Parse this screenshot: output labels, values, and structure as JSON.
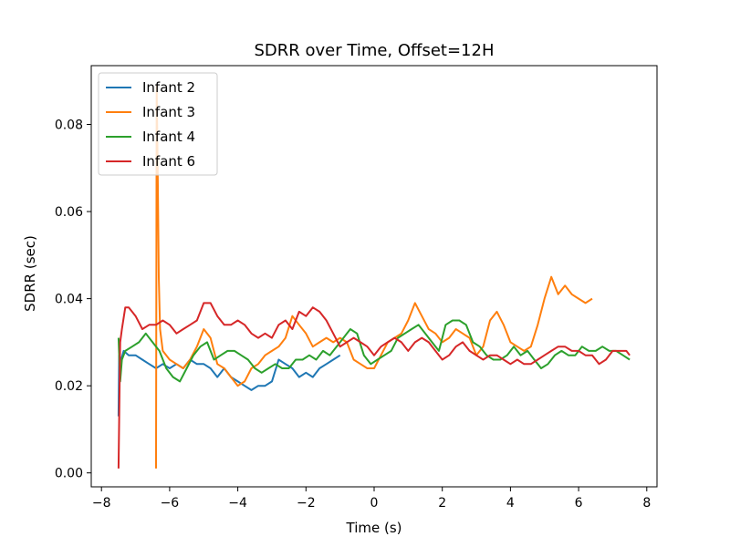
{
  "chart_data": {
    "type": "line",
    "title": "SDRR over Time, Offset=12H",
    "xlabel": "Time (s)",
    "ylabel": "SDRR (sec)",
    "xlim": [
      -8.3,
      8.3
    ],
    "ylim": [
      -0.0032,
      0.0935
    ],
    "xticks": [
      -8,
      -6,
      -4,
      -2,
      0,
      2,
      4,
      6,
      8
    ],
    "xtick_labels": [
      "−8",
      "−6",
      "−4",
      "−2",
      "0",
      "2",
      "4",
      "6",
      "8"
    ],
    "yticks": [
      0.0,
      0.02,
      0.04,
      0.06,
      0.08
    ],
    "ytick_labels": [
      "0.00",
      "0.02",
      "0.04",
      "0.06",
      "0.08"
    ],
    "legend_position": "upper-left",
    "series": [
      {
        "name": "Infant 2",
        "color": "#1f77b4",
        "x": [
          -7.5,
          -7.48,
          -7.42,
          -7.35,
          -7.2,
          -7.0,
          -6.8,
          -6.6,
          -6.4,
          -6.2,
          -6.0,
          -5.8,
          -5.6,
          -5.4,
          -5.2,
          -5.0,
          -4.8,
          -4.6,
          -4.4,
          -4.2,
          -4.0,
          -3.8,
          -3.6,
          -3.4,
          -3.2,
          -3.0,
          -2.8,
          -2.6,
          -2.4,
          -2.2,
          -2.0,
          -1.8,
          -1.6,
          -1.4,
          -1.2,
          -1.0
        ],
        "y": [
          0.013,
          0.027,
          0.026,
          0.028,
          0.027,
          0.027,
          0.026,
          0.025,
          0.024,
          0.025,
          0.024,
          0.025,
          0.024,
          0.026,
          0.025,
          0.025,
          0.024,
          0.022,
          0.024,
          0.022,
          0.021,
          0.02,
          0.019,
          0.02,
          0.02,
          0.021,
          0.026,
          0.025,
          0.024,
          0.022,
          0.023,
          0.022,
          0.024,
          0.025,
          0.026,
          0.027
        ]
      },
      {
        "name": "Infant 3",
        "color": "#ff7f0e",
        "x": [
          -6.4,
          -6.38,
          -6.35,
          -6.32,
          -6.28,
          -6.2,
          -6.0,
          -5.8,
          -5.6,
          -5.4,
          -5.2,
          -5.0,
          -4.8,
          -4.6,
          -4.4,
          -4.2,
          -4.0,
          -3.8,
          -3.6,
          -3.4,
          -3.2,
          -3.0,
          -2.8,
          -2.6,
          -2.4,
          -2.2,
          -2.0,
          -1.8,
          -1.6,
          -1.4,
          -1.2,
          -1.0,
          -0.8,
          -0.6,
          -0.4,
          -0.2,
          0.0,
          0.2,
          0.4,
          0.6,
          0.8,
          1.0,
          1.2,
          1.4,
          1.6,
          1.8,
          2.0,
          2.2,
          2.4,
          2.6,
          2.8,
          3.0,
          3.2,
          3.4,
          3.6,
          3.8,
          4.0,
          4.2,
          4.4,
          4.6,
          4.8,
          5.0,
          5.2,
          5.4,
          5.6,
          5.8,
          6.0,
          6.2,
          6.4
        ],
        "y": [
          0.001,
          0.089,
          0.07,
          0.045,
          0.033,
          0.028,
          0.026,
          0.025,
          0.024,
          0.026,
          0.029,
          0.033,
          0.031,
          0.025,
          0.024,
          0.022,
          0.02,
          0.021,
          0.024,
          0.025,
          0.027,
          0.028,
          0.029,
          0.031,
          0.036,
          0.034,
          0.032,
          0.029,
          0.03,
          0.031,
          0.03,
          0.031,
          0.03,
          0.026,
          0.025,
          0.024,
          0.024,
          0.027,
          0.03,
          0.031,
          0.032,
          0.035,
          0.039,
          0.036,
          0.033,
          0.032,
          0.03,
          0.031,
          0.033,
          0.032,
          0.031,
          0.027,
          0.029,
          0.035,
          0.037,
          0.034,
          0.03,
          0.029,
          0.028,
          0.029,
          0.034,
          0.04,
          0.045,
          0.041,
          0.043,
          0.041,
          0.04,
          0.039,
          0.04
        ]
      },
      {
        "name": "Infant 4",
        "color": "#2ca02c",
        "x": [
          -7.5,
          -7.45,
          -7.4,
          -7.3,
          -7.1,
          -6.9,
          -6.7,
          -6.5,
          -6.3,
          -6.1,
          -5.9,
          -5.7,
          -5.5,
          -5.3,
          -5.1,
          -4.9,
          -4.7,
          -4.5,
          -4.3,
          -4.1,
          -3.9,
          -3.7,
          -3.5,
          -3.3,
          -3.1,
          -2.9,
          -2.7,
          -2.5,
          -2.3,
          -2.1,
          -1.9,
          -1.7,
          -1.5,
          -1.3,
          -1.1,
          -0.9,
          -0.7,
          -0.5,
          -0.3,
          -0.1,
          0.1,
          0.3,
          0.5,
          0.7,
          0.9,
          1.1,
          1.3,
          1.5,
          1.7,
          1.9,
          2.1,
          2.3,
          2.5,
          2.7,
          2.9,
          3.1,
          3.3,
          3.5,
          3.7,
          3.9,
          4.1,
          4.3,
          4.5,
          4.7,
          4.9,
          5.1,
          5.3,
          5.5,
          5.7,
          5.9,
          6.1,
          6.3,
          6.5,
          6.7,
          6.9,
          7.1,
          7.3,
          7.5
        ],
        "y": [
          0.031,
          0.021,
          0.026,
          0.028,
          0.029,
          0.03,
          0.032,
          0.03,
          0.028,
          0.024,
          0.022,
          0.021,
          0.024,
          0.027,
          0.029,
          0.03,
          0.026,
          0.027,
          0.028,
          0.028,
          0.027,
          0.026,
          0.024,
          0.023,
          0.024,
          0.025,
          0.024,
          0.024,
          0.026,
          0.026,
          0.027,
          0.026,
          0.028,
          0.027,
          0.029,
          0.031,
          0.033,
          0.032,
          0.027,
          0.025,
          0.026,
          0.027,
          0.028,
          0.031,
          0.032,
          0.033,
          0.034,
          0.032,
          0.03,
          0.028,
          0.034,
          0.035,
          0.035,
          0.034,
          0.03,
          0.029,
          0.027,
          0.026,
          0.026,
          0.027,
          0.029,
          0.027,
          0.028,
          0.026,
          0.024,
          0.025,
          0.027,
          0.028,
          0.027,
          0.027,
          0.029,
          0.028,
          0.028,
          0.029,
          0.028,
          0.028,
          0.027,
          0.026
        ]
      },
      {
        "name": "Infant 6",
        "color": "#d62728",
        "x": [
          -7.5,
          -7.45,
          -7.4,
          -7.3,
          -7.2,
          -7.0,
          -6.8,
          -6.6,
          -6.4,
          -6.2,
          -6.0,
          -5.8,
          -5.6,
          -5.4,
          -5.2,
          -5.0,
          -4.8,
          -4.6,
          -4.4,
          -4.2,
          -4.0,
          -3.8,
          -3.6,
          -3.4,
          -3.2,
          -3.0,
          -2.8,
          -2.6,
          -2.4,
          -2.2,
          -2.0,
          -1.8,
          -1.6,
          -1.4,
          -1.2,
          -1.0,
          -0.8,
          -0.6,
          -0.4,
          -0.2,
          0.0,
          0.2,
          0.4,
          0.6,
          0.8,
          1.0,
          1.2,
          1.4,
          1.6,
          1.8,
          2.0,
          2.2,
          2.4,
          2.6,
          2.8,
          3.0,
          3.2,
          3.4,
          3.6,
          3.8,
          4.0,
          4.2,
          4.4,
          4.6,
          4.8,
          5.0,
          5.2,
          5.4,
          5.6,
          5.8,
          6.0,
          6.2,
          6.4,
          6.6,
          6.8,
          7.0,
          7.2,
          7.4,
          7.5
        ],
        "y": [
          0.001,
          0.03,
          0.033,
          0.038,
          0.038,
          0.036,
          0.033,
          0.034,
          0.034,
          0.035,
          0.034,
          0.032,
          0.033,
          0.034,
          0.035,
          0.039,
          0.039,
          0.036,
          0.034,
          0.034,
          0.035,
          0.034,
          0.032,
          0.031,
          0.032,
          0.031,
          0.034,
          0.035,
          0.033,
          0.037,
          0.036,
          0.038,
          0.037,
          0.035,
          0.032,
          0.029,
          0.03,
          0.031,
          0.03,
          0.029,
          0.027,
          0.029,
          0.03,
          0.031,
          0.03,
          0.028,
          0.03,
          0.031,
          0.03,
          0.028,
          0.026,
          0.027,
          0.029,
          0.03,
          0.028,
          0.027,
          0.026,
          0.027,
          0.027,
          0.026,
          0.025,
          0.026,
          0.025,
          0.025,
          0.026,
          0.027,
          0.028,
          0.029,
          0.029,
          0.028,
          0.028,
          0.027,
          0.027,
          0.025,
          0.026,
          0.028,
          0.028,
          0.028,
          0.027
        ]
      }
    ]
  }
}
